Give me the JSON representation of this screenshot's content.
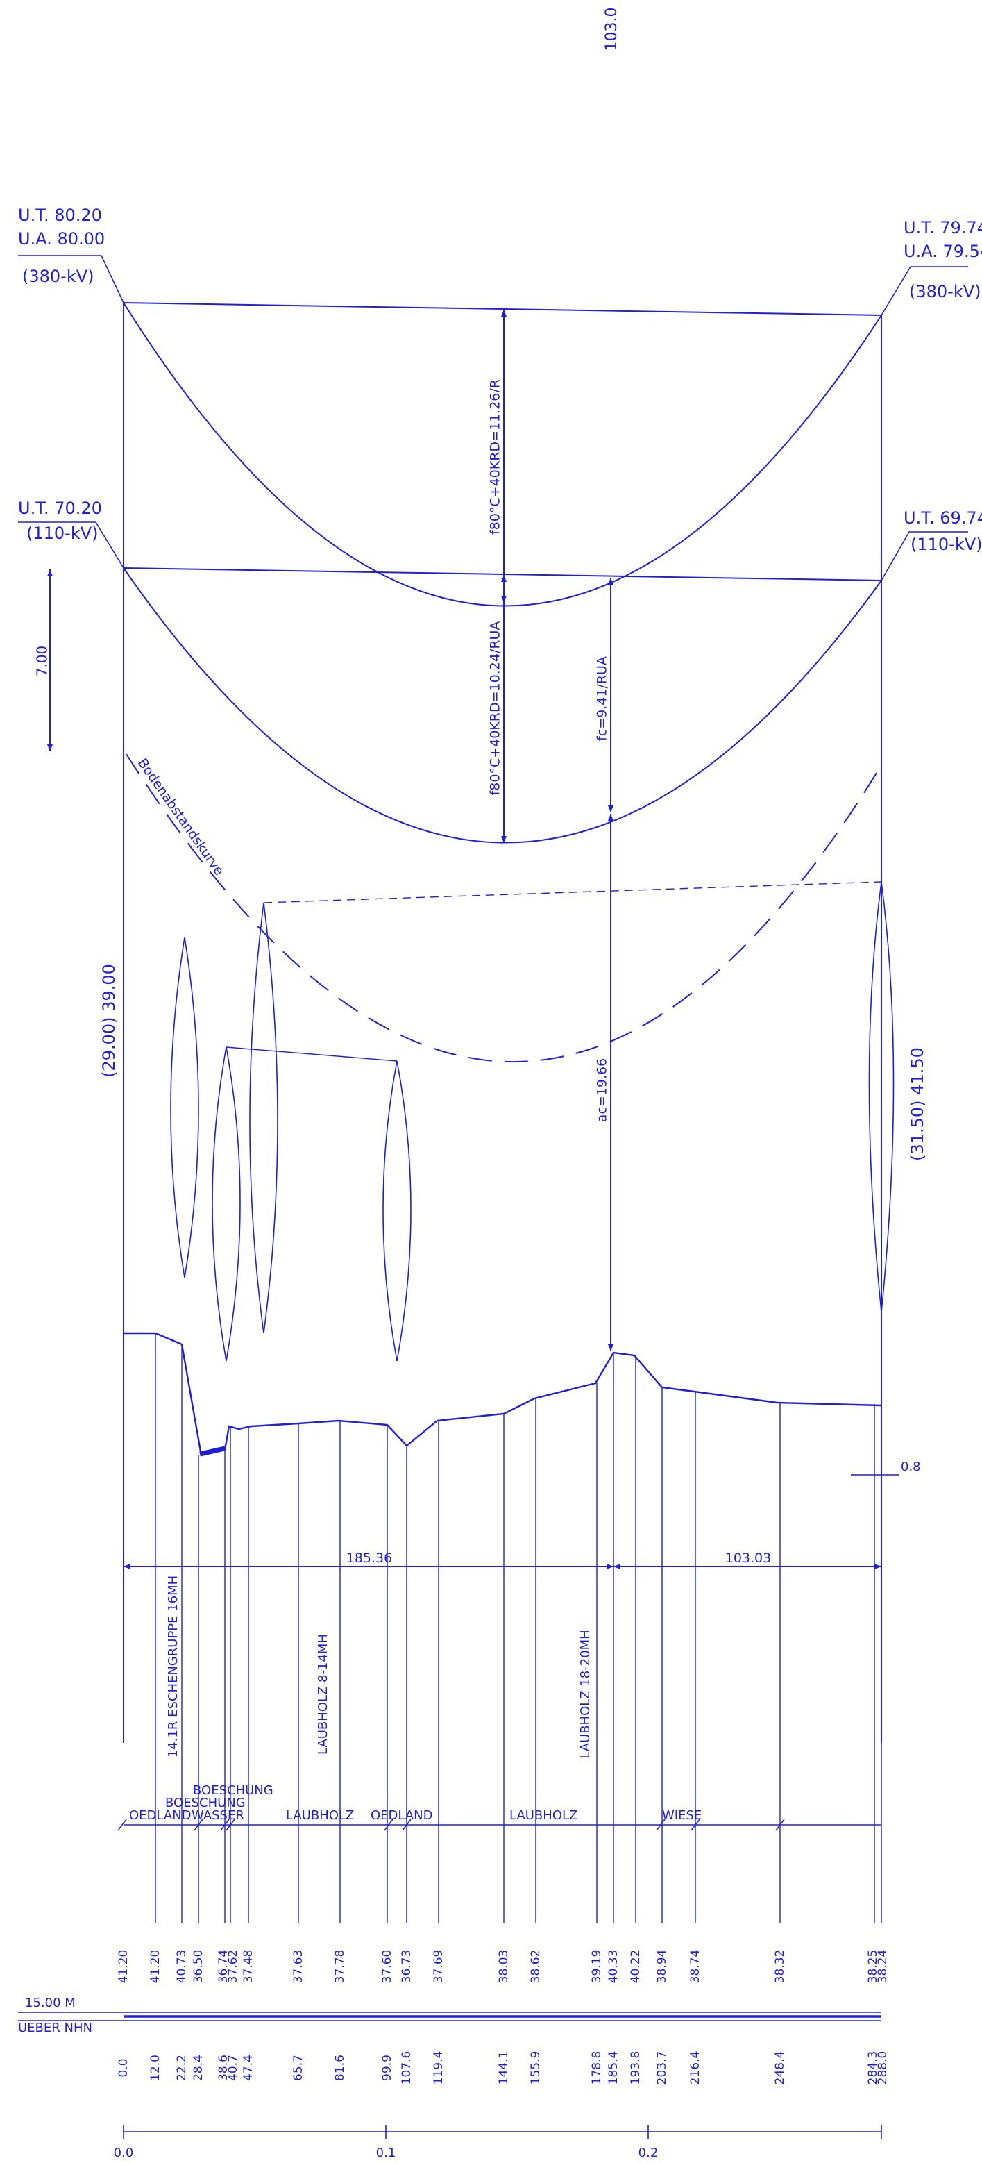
{
  "top_label": "103.0",
  "left_tower": {
    "ut_380": "U.T. 80.20",
    "ua_380": "U.A. 80.00",
    "kv_380": "(380-kV)",
    "ut_110": "U.T. 70.20",
    "kv_110": "(110-kV)",
    "height": "(29.00)  39.00"
  },
  "right_tower": {
    "ut_380": "U.T. 79.74",
    "ua_380": "U.A. 79.54",
    "kv_380": "(380-kV)",
    "ut_110": "U.T. 69.74",
    "kv_110": "(110-kV)",
    "height": "(31.50)  41.50"
  },
  "dimensions": {
    "vertical_scale": "7.00",
    "sag_380": "f80°C+40KRD=11.26/R",
    "sag_110": "f80°C+40KRD=10.24/RUA",
    "fc": "fc=9.41/RUA",
    "ac": "ac=19.66",
    "span_left": "185.36",
    "span_right": "103.03",
    "offset": "0.8"
  },
  "curve_label": "Bodenabstandskurve",
  "vegetation": [
    "14.1R ESCHENGRUPPE 16MH",
    "LAUBHOLZ 8-14MH",
    "LAUBHOLZ 18-20MH"
  ],
  "land_use": [
    "OEDLAND",
    "BOESCHUNG",
    "BOESCHUNG",
    "WASSER",
    "LAUBHOLZ",
    "OEDLAND",
    "LAUBHOLZ",
    "WIESE"
  ],
  "datum": {
    "level": "15.00 M",
    "ref": "UEBER NHN"
  },
  "elevations": [
    "41.20",
    "41.20",
    "40.73",
    "36.50",
    "36.74",
    "37.62",
    "37.48",
    "37.63",
    "37.78",
    "37.60",
    "36.73",
    "37.69",
    "38.03",
    "38.62",
    "39.19",
    "40.33",
    "40.22",
    "38.94",
    "38.74",
    "38.32",
    "38.25",
    "38.24"
  ],
  "stations": [
    "0.0",
    "12.0",
    "22.2",
    "28.4",
    "38.6",
    "40.7",
    "47.4",
    "65.7",
    "81.6",
    "99.9",
    "107.6",
    "119.4",
    "144.1",
    "155.9",
    "178.8",
    "185.4",
    "193.8",
    "203.7",
    "216.4",
    "248.4",
    "284.3",
    "288.0"
  ],
  "scale_ticks": [
    "0.0",
    "0.1",
    "0.2"
  ],
  "colors": {
    "line": "#1f1fd6"
  }
}
